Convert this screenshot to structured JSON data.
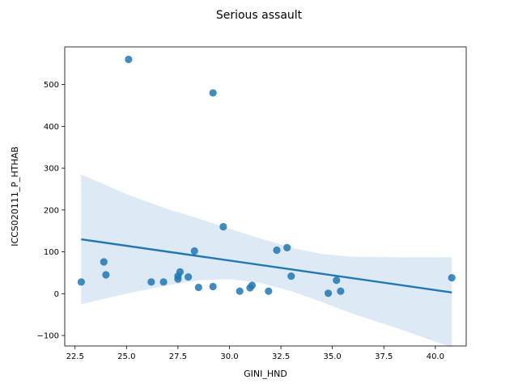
{
  "chart_data": {
    "type": "scatter",
    "title": "Serious assault",
    "xlabel": "GINI_HND",
    "ylabel": "ICCS020111_P_HTHAB",
    "xlim": [
      22.0,
      41.5
    ],
    "ylim": [
      -125,
      590
    ],
    "xticks": [
      "22.5",
      "25.0",
      "27.5",
      "30.0",
      "32.5",
      "35.0",
      "37.5",
      "40.0"
    ],
    "yticks": [
      "−100",
      "0",
      "100",
      "200",
      "300",
      "400",
      "500"
    ],
    "xtick_values": [
      22.5,
      25.0,
      27.5,
      30.0,
      32.5,
      35.0,
      37.5,
      40.0
    ],
    "ytick_values": [
      -100,
      0,
      100,
      200,
      300,
      400,
      500
    ],
    "grid": false,
    "legend": "none",
    "colors": {
      "points": "#1f77b4",
      "line": "#1f77b4",
      "band": "#c6dbef"
    },
    "points": [
      {
        "x": 22.8,
        "y": 28
      },
      {
        "x": 23.9,
        "y": 76
      },
      {
        "x": 24.0,
        "y": 45
      },
      {
        "x": 25.1,
        "y": 560
      },
      {
        "x": 26.2,
        "y": 28
      },
      {
        "x": 26.8,
        "y": 28
      },
      {
        "x": 27.5,
        "y": 42
      },
      {
        "x": 27.5,
        "y": 35
      },
      {
        "x": 27.6,
        "y": 52
      },
      {
        "x": 28.0,
        "y": 40
      },
      {
        "x": 28.3,
        "y": 102
      },
      {
        "x": 28.5,
        "y": 15
      },
      {
        "x": 29.2,
        "y": 17
      },
      {
        "x": 29.2,
        "y": 480
      },
      {
        "x": 29.7,
        "y": 160
      },
      {
        "x": 30.5,
        "y": 6
      },
      {
        "x": 31.0,
        "y": 14
      },
      {
        "x": 31.1,
        "y": 20
      },
      {
        "x": 31.9,
        "y": 6
      },
      {
        "x": 32.3,
        "y": 104
      },
      {
        "x": 32.8,
        "y": 110
      },
      {
        "x": 33.0,
        "y": 42
      },
      {
        "x": 34.8,
        "y": 1
      },
      {
        "x": 35.2,
        "y": 32
      },
      {
        "x": 35.4,
        "y": 6
      },
      {
        "x": 40.8,
        "y": 38
      }
    ],
    "regression": {
      "x": [
        22.8,
        40.8
      ],
      "y": [
        130,
        3
      ]
    },
    "confidence_band": [
      {
        "x": 22.8,
        "lower": -25,
        "upper": 285
      },
      {
        "x": 25.0,
        "lower": 0,
        "upper": 238
      },
      {
        "x": 27.0,
        "lower": 20,
        "upper": 202
      },
      {
        "x": 28.5,
        "lower": 32,
        "upper": 180
      },
      {
        "x": 30.0,
        "lower": 35,
        "upper": 155
      },
      {
        "x": 31.5,
        "lower": 26,
        "upper": 132
      },
      {
        "x": 33.0,
        "lower": 6,
        "upper": 110
      },
      {
        "x": 34.5,
        "lower": -20,
        "upper": 95
      },
      {
        "x": 36.0,
        "lower": -48,
        "upper": 88
      },
      {
        "x": 38.0,
        "lower": -80,
        "upper": 87
      },
      {
        "x": 40.8,
        "lower": -128,
        "upper": 87
      }
    ]
  }
}
